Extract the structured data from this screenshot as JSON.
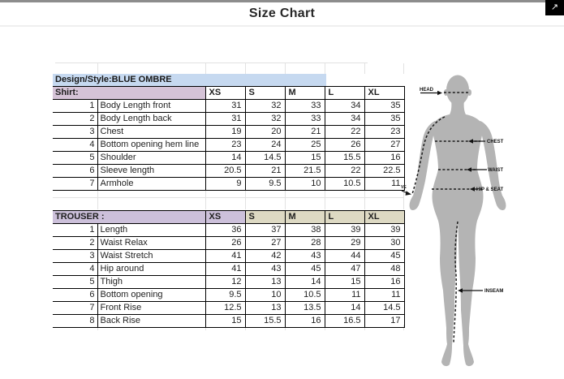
{
  "header": {
    "title": "Size Chart",
    "expand_icon": "↗"
  },
  "sheet": {
    "design_style_label": "Design/Style:BLUE OMBRE",
    "sizes": [
      "XS",
      "S",
      "M",
      "L",
      "XL"
    ],
    "shirt": {
      "label": "Shirt:",
      "rows": [
        {
          "n": "1",
          "label": "Body Length front",
          "values": [
            "31",
            "32",
            "33",
            "34",
            "35"
          ]
        },
        {
          "n": "2",
          "label": "Body Length back",
          "values": [
            "31",
            "32",
            "33",
            "34",
            "35"
          ]
        },
        {
          "n": "3",
          "label": "Chest",
          "values": [
            "19",
            "20",
            "21",
            "22",
            "23"
          ]
        },
        {
          "n": "4",
          "label": "Bottom opening hem line",
          "values": [
            "23",
            "24",
            "25",
            "26",
            "27"
          ]
        },
        {
          "n": "5",
          "label": "Shoulder",
          "values": [
            "14",
            "14.5",
            "15",
            "15.5",
            "16"
          ]
        },
        {
          "n": "6",
          "label": "Sleeve length",
          "values": [
            "20.5",
            "21",
            "21.5",
            "22",
            "22.5"
          ]
        },
        {
          "n": "7",
          "label": "Armhole",
          "values": [
            "9",
            "9.5",
            "10",
            "10.5",
            "11"
          ]
        }
      ]
    },
    "trouser": {
      "label": "TROUSER :",
      "rows": [
        {
          "n": "1",
          "label": "Length",
          "values": [
            "36",
            "37",
            "38",
            "39",
            "39"
          ]
        },
        {
          "n": "2",
          "label": "Waist Relax",
          "values": [
            "26",
            "27",
            "28",
            "29",
            "30"
          ]
        },
        {
          "n": "3",
          "label": "Waist Stretch",
          "values": [
            "41",
            "42",
            "43",
            "44",
            "45"
          ]
        },
        {
          "n": "4",
          "label": "Hip around",
          "values": [
            "41",
            "43",
            "45",
            "47",
            "48"
          ]
        },
        {
          "n": "5",
          "label": "Thigh",
          "values": [
            "12",
            "13",
            "14",
            "15",
            "16"
          ]
        },
        {
          "n": "6",
          "label": "Bottom opening",
          "values": [
            "9.5",
            "10",
            "10.5",
            "11",
            "11"
          ]
        },
        {
          "n": "7",
          "label": "Front Rise",
          "values": [
            "12.5",
            "13",
            "13.5",
            "14",
            "14.5"
          ]
        },
        {
          "n": "8",
          "label": "Back Rise",
          "values": [
            "15",
            "15.5",
            "16",
            "16.5",
            "17"
          ]
        }
      ]
    }
  },
  "diagram": {
    "labels": {
      "head": "HEAD",
      "chest": "CHEST",
      "waist": "WAIST",
      "hip_seat": "HIP & SEAT",
      "sleeve": "VE",
      "inseam": "INSEAM"
    }
  },
  "colors": {
    "design_band": "#c6d9f0",
    "shirt_header": "#d5c3d7",
    "trouser_header_purple": "#ccc0da",
    "trouser_header_tan": "#ddd9c3",
    "figure_gray": "#b4b4b4",
    "top_bar": "#8d8d8d",
    "bottom_bar": "#383838"
  }
}
